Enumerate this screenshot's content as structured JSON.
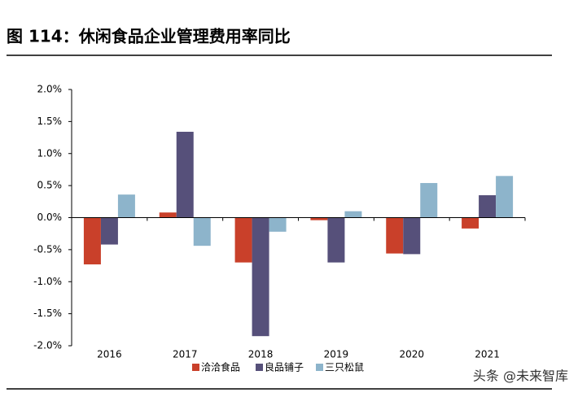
{
  "chart_data": {
    "type": "bar",
    "title": "图 114：休闲食品企业管理费用率同比",
    "categories": [
      "2016",
      "2017",
      "2018",
      "2019",
      "2020",
      "2021"
    ],
    "series": [
      {
        "name": "洽洽食品",
        "color": "#c9402a",
        "values": [
          -0.73,
          0.08,
          -0.7,
          -0.04,
          -0.56,
          -0.17
        ]
      },
      {
        "name": "良品铺子",
        "color": "#56507a",
        "values": [
          -0.42,
          1.34,
          -1.85,
          -0.7,
          -0.57,
          0.35
        ]
      },
      {
        "name": "三只松鼠",
        "color": "#8db4cb",
        "values": [
          0.36,
          -0.44,
          -0.22,
          0.1,
          0.54,
          0.65
        ]
      }
    ],
    "ylim": [
      -2.0,
      2.0
    ],
    "yticks": [
      {
        "value": -2.0,
        "label": "-2.0%"
      },
      {
        "value": -1.5,
        "label": "-1.5%"
      },
      {
        "value": -1.0,
        "label": "-1.0%"
      },
      {
        "value": -0.5,
        "label": "-0.5%"
      },
      {
        "value": 0,
        "label": "0.0%"
      },
      {
        "value": 0.5,
        "label": "0.5%"
      },
      {
        "value": 1.0,
        "label": "1.0%"
      },
      {
        "value": 1.5,
        "label": "1.5%"
      },
      {
        "value": 2.0,
        "label": "2.0%"
      }
    ],
    "grid": false,
    "legend": "bottom",
    "watermark": "头条 @未来智库"
  }
}
